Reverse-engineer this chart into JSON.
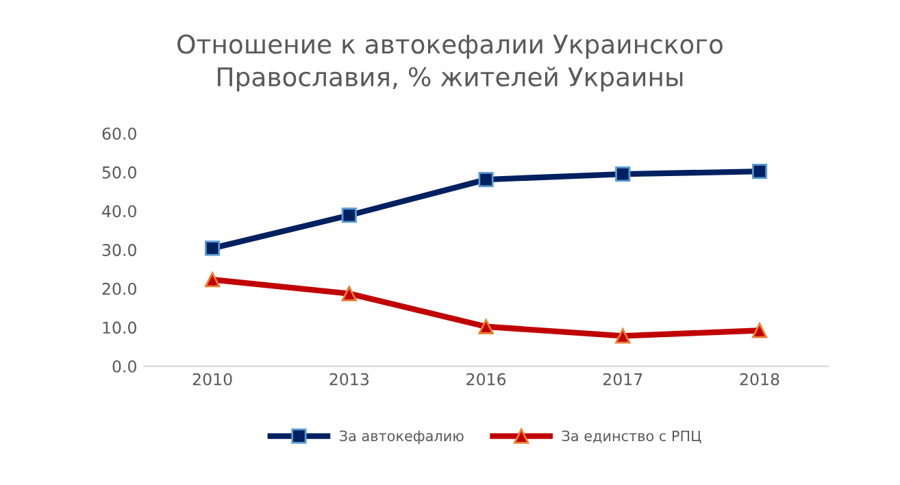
{
  "chart_data": {
    "type": "line",
    "title": "Отношение к автокефалии Украинского\nПравославия, % жителей Украины",
    "categories": [
      "2010",
      "2013",
      "2016",
      "2017",
      "2018"
    ],
    "series": [
      {
        "name": "За автокефалию",
        "color": "#002060",
        "marker": "square",
        "values": [
          30.4,
          38.9,
          48.1,
          49.5,
          50.2
        ]
      },
      {
        "name": "За единство с РПЦ",
        "color": "#c00000",
        "marker": "triangle",
        "values": [
          22.3,
          18.7,
          10.2,
          7.8,
          9.2
        ]
      }
    ],
    "ylim": [
      0,
      60
    ],
    "yticks": [
      {
        "value": 0,
        "label": "0.0"
      },
      {
        "value": 10,
        "label": "10.0"
      },
      {
        "value": 20,
        "label": "20.0"
      },
      {
        "value": 30,
        "label": "30.0"
      },
      {
        "value": 40,
        "label": "40.0"
      },
      {
        "value": 50,
        "label": "50.0"
      },
      {
        "value": 60,
        "label": "60.0"
      }
    ],
    "grid": false,
    "legend": "bottom",
    "line_style": "solid"
  }
}
